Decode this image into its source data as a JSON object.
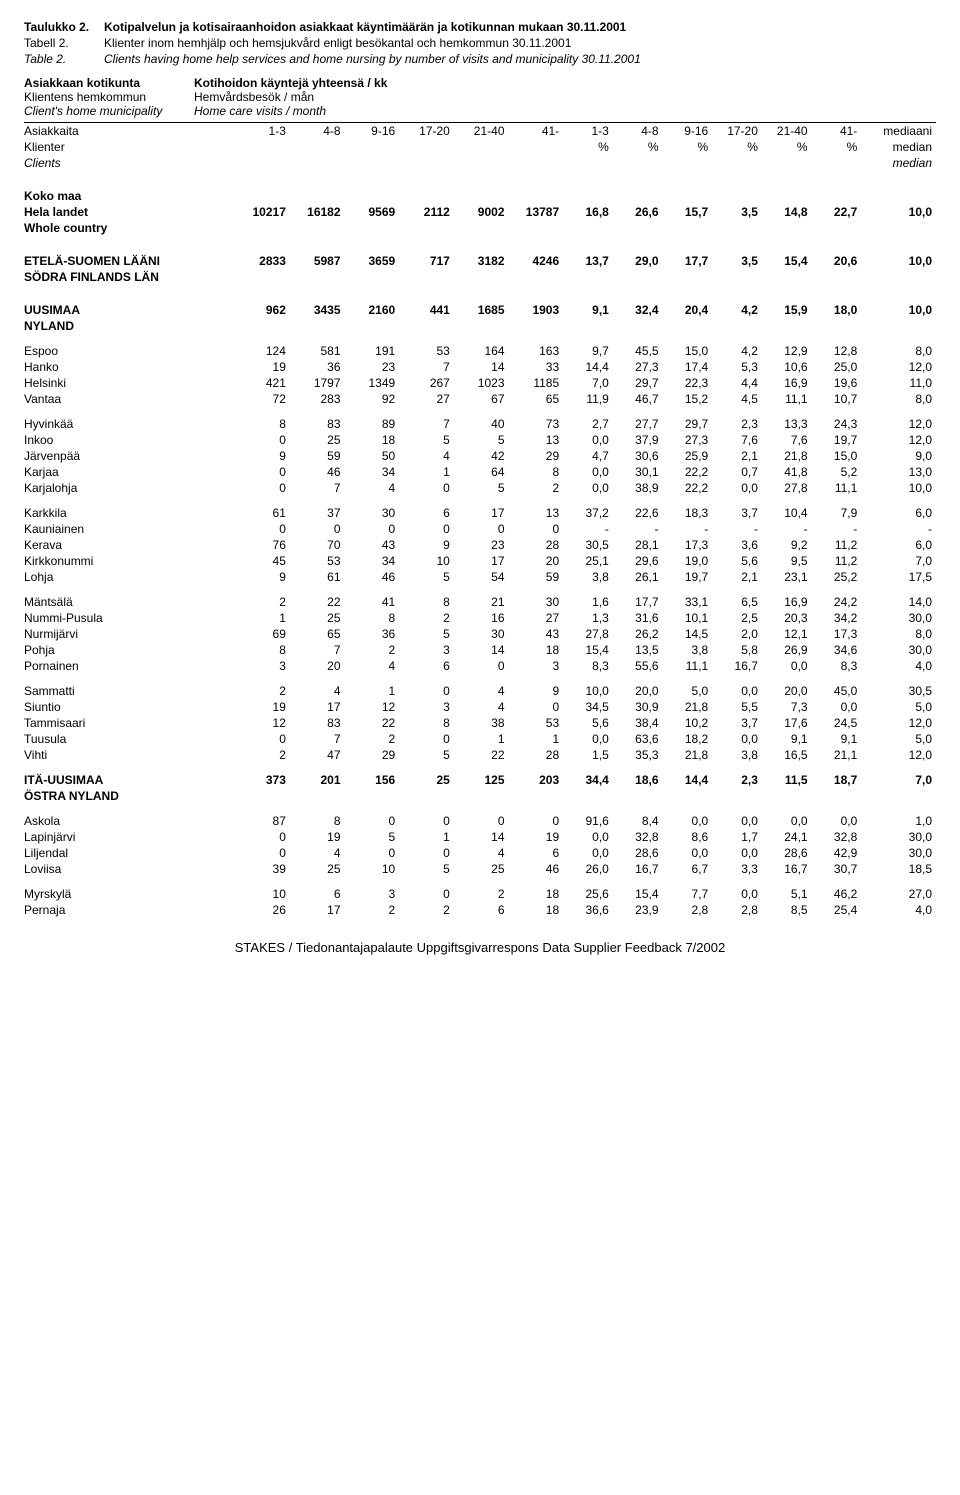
{
  "titles": [
    {
      "label": "Taulukko 2.",
      "text": "Kotipalvelun ja kotisairaanhoidon asiakkaat käyntimäärän ja kotikunnan mukaan 30.11.2001",
      "bold": true,
      "italic": false
    },
    {
      "label": "Tabell 2.",
      "text": "Klienter inom hemhjälp och hemsjukvård enligt besökantal och hemkommun 30.11.2001",
      "bold": false,
      "italic": false
    },
    {
      "label": "Table 2.",
      "text": "Clients having home help services and home nursing by number of visits and municipality 30.11.2001",
      "bold": false,
      "italic": true
    }
  ],
  "header_left": [
    {
      "text": "Asiakkaan kotikunta",
      "bold": true,
      "italic": false
    },
    {
      "text": "Klientens hemkommun",
      "bold": false,
      "italic": false
    },
    {
      "text": "Client's home municipality",
      "bold": false,
      "italic": true
    }
  ],
  "header_right": [
    {
      "text": "Kotihoidon käyntejä yhteensä / kk",
      "bold": true,
      "italic": false
    },
    {
      "text": "Hemvårdsbesök / mån",
      "bold": false,
      "italic": false
    },
    {
      "text": "Home care visits / month",
      "bold": false,
      "italic": true
    }
  ],
  "col_headers": {
    "row1": [
      "Asiakkaita",
      "1-3",
      "4-8",
      "9-16",
      "17-20",
      "21-40",
      "41-",
      "1-3",
      "4-8",
      "9-16",
      "17-20",
      "21-40",
      "41-",
      "mediaani"
    ],
    "row2": [
      "Klienter",
      "",
      "",
      "",
      "",
      "",
      "",
      "%",
      "%",
      "%",
      "%",
      "%",
      "%",
      "median"
    ],
    "row3": [
      "Clients",
      "",
      "",
      "",
      "",
      "",
      "",
      "",
      "",
      "",
      "",
      "",
      "",
      "median"
    ]
  },
  "sections": [
    {
      "gap": "section",
      "rows": [
        {
          "bold": true,
          "cells": [
            "Koko maa",
            "",
            "",
            "",
            "",
            "",
            "",
            "",
            "",
            "",
            "",
            "",
            "",
            ""
          ]
        },
        {
          "bold": true,
          "cells": [
            "Hela landet",
            "10217",
            "16182",
            "9569",
            "2112",
            "9002",
            "13787",
            "16,8",
            "26,6",
            "15,7",
            "3,5",
            "14,8",
            "22,7",
            "10,0"
          ]
        },
        {
          "bold": true,
          "cells": [
            "Whole country",
            "",
            "",
            "",
            "",
            "",
            "",
            "",
            "",
            "",
            "",
            "",
            "",
            ""
          ]
        }
      ]
    },
    {
      "gap": "section",
      "rows": [
        {
          "bold": true,
          "cells": [
            "ETELÄ-SUOMEN LÄÄNI",
            "2833",
            "5987",
            "3659",
            "717",
            "3182",
            "4246",
            "13,7",
            "29,0",
            "17,7",
            "3,5",
            "15,4",
            "20,6",
            "10,0"
          ]
        },
        {
          "bold": true,
          "cells": [
            "SÖDRA FINLANDS LÄN",
            "",
            "",
            "",
            "",
            "",
            "",
            "",
            "",
            "",
            "",
            "",
            "",
            ""
          ]
        }
      ]
    },
    {
      "gap": "section",
      "rows": [
        {
          "bold": true,
          "cells": [
            "UUSIMAA",
            "962",
            "3435",
            "2160",
            "441",
            "1685",
            "1903",
            "9,1",
            "32,4",
            "20,4",
            "4,2",
            "15,9",
            "18,0",
            "10,0"
          ]
        },
        {
          "bold": true,
          "cells": [
            "NYLAND",
            "",
            "",
            "",
            "",
            "",
            "",
            "",
            "",
            "",
            "",
            "",
            "",
            ""
          ]
        }
      ]
    },
    {
      "gap": "small",
      "rows": [
        {
          "cells": [
            "Espoo",
            "124",
            "581",
            "191",
            "53",
            "164",
            "163",
            "9,7",
            "45,5",
            "15,0",
            "4,2",
            "12,9",
            "12,8",
            "8,0"
          ]
        },
        {
          "cells": [
            "Hanko",
            "19",
            "36",
            "23",
            "7",
            "14",
            "33",
            "14,4",
            "27,3",
            "17,4",
            "5,3",
            "10,6",
            "25,0",
            "12,0"
          ]
        },
        {
          "cells": [
            "Helsinki",
            "421",
            "1797",
            "1349",
            "267",
            "1023",
            "1185",
            "7,0",
            "29,7",
            "22,3",
            "4,4",
            "16,9",
            "19,6",
            "11,0"
          ]
        },
        {
          "cells": [
            "Vantaa",
            "72",
            "283",
            "92",
            "27",
            "67",
            "65",
            "11,9",
            "46,7",
            "15,2",
            "4,5",
            "11,1",
            "10,7",
            "8,0"
          ]
        }
      ]
    },
    {
      "gap": "small",
      "rows": [
        {
          "cells": [
            "Hyvinkää",
            "8",
            "83",
            "89",
            "7",
            "40",
            "73",
            "2,7",
            "27,7",
            "29,7",
            "2,3",
            "13,3",
            "24,3",
            "12,0"
          ]
        },
        {
          "cells": [
            "Inkoo",
            "0",
            "25",
            "18",
            "5",
            "5",
            "13",
            "0,0",
            "37,9",
            "27,3",
            "7,6",
            "7,6",
            "19,7",
            "12,0"
          ]
        },
        {
          "cells": [
            "Järvenpää",
            "9",
            "59",
            "50",
            "4",
            "42",
            "29",
            "4,7",
            "30,6",
            "25,9",
            "2,1",
            "21,8",
            "15,0",
            "9,0"
          ]
        },
        {
          "cells": [
            "Karjaa",
            "0",
            "46",
            "34",
            "1",
            "64",
            "8",
            "0,0",
            "30,1",
            "22,2",
            "0,7",
            "41,8",
            "5,2",
            "13,0"
          ]
        },
        {
          "cells": [
            "Karjalohja",
            "0",
            "7",
            "4",
            "0",
            "5",
            "2",
            "0,0",
            "38,9",
            "22,2",
            "0,0",
            "27,8",
            "11,1",
            "10,0"
          ]
        }
      ]
    },
    {
      "gap": "small",
      "rows": [
        {
          "cells": [
            "Karkkila",
            "61",
            "37",
            "30",
            "6",
            "17",
            "13",
            "37,2",
            "22,6",
            "18,3",
            "3,7",
            "10,4",
            "7,9",
            "6,0"
          ]
        },
        {
          "cells": [
            "Kauniainen",
            "0",
            "0",
            "0",
            "0",
            "0",
            "0",
            "-",
            "-",
            "-",
            "-",
            "-",
            "-",
            "-"
          ]
        },
        {
          "cells": [
            "Kerava",
            "76",
            "70",
            "43",
            "9",
            "23",
            "28",
            "30,5",
            "28,1",
            "17,3",
            "3,6",
            "9,2",
            "11,2",
            "6,0"
          ]
        },
        {
          "cells": [
            "Kirkkonummi",
            "45",
            "53",
            "34",
            "10",
            "17",
            "20",
            "25,1",
            "29,6",
            "19,0",
            "5,6",
            "9,5",
            "11,2",
            "7,0"
          ]
        },
        {
          "cells": [
            "Lohja",
            "9",
            "61",
            "46",
            "5",
            "54",
            "59",
            "3,8",
            "26,1",
            "19,7",
            "2,1",
            "23,1",
            "25,2",
            "17,5"
          ]
        }
      ]
    },
    {
      "gap": "small",
      "rows": [
        {
          "cells": [
            "Mäntsälä",
            "2",
            "22",
            "41",
            "8",
            "21",
            "30",
            "1,6",
            "17,7",
            "33,1",
            "6,5",
            "16,9",
            "24,2",
            "14,0"
          ]
        },
        {
          "cells": [
            "Nummi-Pusula",
            "1",
            "25",
            "8",
            "2",
            "16",
            "27",
            "1,3",
            "31,6",
            "10,1",
            "2,5",
            "20,3",
            "34,2",
            "30,0"
          ]
        },
        {
          "cells": [
            "Nurmijärvi",
            "69",
            "65",
            "36",
            "5",
            "30",
            "43",
            "27,8",
            "26,2",
            "14,5",
            "2,0",
            "12,1",
            "17,3",
            "8,0"
          ]
        },
        {
          "cells": [
            "Pohja",
            "8",
            "7",
            "2",
            "3",
            "14",
            "18",
            "15,4",
            "13,5",
            "3,8",
            "5,8",
            "26,9",
            "34,6",
            "30,0"
          ]
        },
        {
          "cells": [
            "Pornainen",
            "3",
            "20",
            "4",
            "6",
            "0",
            "3",
            "8,3",
            "55,6",
            "11,1",
            "16,7",
            "0,0",
            "8,3",
            "4,0"
          ]
        }
      ]
    },
    {
      "gap": "small",
      "rows": [
        {
          "cells": [
            "Sammatti",
            "2",
            "4",
            "1",
            "0",
            "4",
            "9",
            "10,0",
            "20,0",
            "5,0",
            "0,0",
            "20,0",
            "45,0",
            "30,5"
          ]
        },
        {
          "cells": [
            "Siuntio",
            "19",
            "17",
            "12",
            "3",
            "4",
            "0",
            "34,5",
            "30,9",
            "21,8",
            "5,5",
            "7,3",
            "0,0",
            "5,0"
          ]
        },
        {
          "cells": [
            "Tammisaari",
            "12",
            "83",
            "22",
            "8",
            "38",
            "53",
            "5,6",
            "38,4",
            "10,2",
            "3,7",
            "17,6",
            "24,5",
            "12,0"
          ]
        },
        {
          "cells": [
            "Tuusula",
            "0",
            "7",
            "2",
            "0",
            "1",
            "1",
            "0,0",
            "63,6",
            "18,2",
            "0,0",
            "9,1",
            "9,1",
            "5,0"
          ]
        },
        {
          "cells": [
            "Vihti",
            "2",
            "47",
            "29",
            "5",
            "22",
            "28",
            "1,5",
            "35,3",
            "21,8",
            "3,8",
            "16,5",
            "21,1",
            "12,0"
          ]
        }
      ]
    },
    {
      "gap": "small",
      "rows": [
        {
          "bold": true,
          "cells": [
            "ITÄ-UUSIMAA",
            "373",
            "201",
            "156",
            "25",
            "125",
            "203",
            "34,4",
            "18,6",
            "14,4",
            "2,3",
            "11,5",
            "18,7",
            "7,0"
          ]
        },
        {
          "bold": true,
          "cells": [
            "ÖSTRA NYLAND",
            "",
            "",
            "",
            "",
            "",
            "",
            "",
            "",
            "",
            "",
            "",
            "",
            ""
          ]
        }
      ]
    },
    {
      "gap": "small",
      "rows": [
        {
          "cells": [
            "Askola",
            "87",
            "8",
            "0",
            "0",
            "0",
            "0",
            "91,6",
            "8,4",
            "0,0",
            "0,0",
            "0,0",
            "0,0",
            "1,0"
          ]
        },
        {
          "cells": [
            "Lapinjärvi",
            "0",
            "19",
            "5",
            "1",
            "14",
            "19",
            "0,0",
            "32,8",
            "8,6",
            "1,7",
            "24,1",
            "32,8",
            "30,0"
          ]
        },
        {
          "cells": [
            "Liljendal",
            "0",
            "4",
            "0",
            "0",
            "4",
            "6",
            "0,0",
            "28,6",
            "0,0",
            "0,0",
            "28,6",
            "42,9",
            "30,0"
          ]
        },
        {
          "cells": [
            "Loviisa",
            "39",
            "25",
            "10",
            "5",
            "25",
            "46",
            "26,0",
            "16,7",
            "6,7",
            "3,3",
            "16,7",
            "30,7",
            "18,5"
          ]
        }
      ]
    },
    {
      "gap": "small",
      "rows": [
        {
          "cells": [
            "Myrskylä",
            "10",
            "6",
            "3",
            "0",
            "2",
            "18",
            "25,6",
            "15,4",
            "7,7",
            "0,0",
            "5,1",
            "46,2",
            "27,0"
          ]
        },
        {
          "cells": [
            "Pernaja",
            "26",
            "17",
            "2",
            "2",
            "6",
            "18",
            "36,6",
            "23,9",
            "2,8",
            "2,8",
            "8,5",
            "25,4",
            "4,0"
          ]
        }
      ]
    }
  ],
  "footer": "STAKES / Tiedonantajapalaute   Uppgiftsgivarrespons   Data Supplier Feedback 7/2002"
}
